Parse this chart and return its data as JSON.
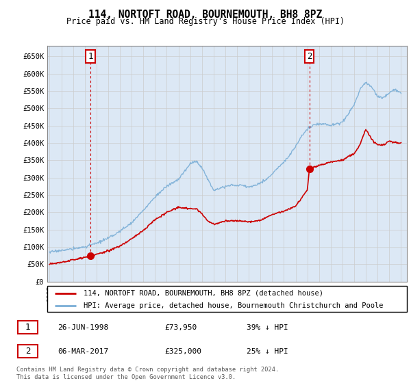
{
  "title": "114, NORTOFT ROAD, BOURNEMOUTH, BH8 8PZ",
  "subtitle": "Price paid vs. HM Land Registry's House Price Index (HPI)",
  "ylabel_ticks": [
    "£0",
    "£50K",
    "£100K",
    "£150K",
    "£200K",
    "£250K",
    "£300K",
    "£350K",
    "£400K",
    "£450K",
    "£500K",
    "£550K",
    "£600K",
    "£650K"
  ],
  "ytick_values": [
    0,
    50000,
    100000,
    150000,
    200000,
    250000,
    300000,
    350000,
    400000,
    450000,
    500000,
    550000,
    600000,
    650000
  ],
  "ylim": [
    0,
    680000
  ],
  "xlim_start": 1994.8,
  "xlim_end": 2025.5,
  "sale1_x": 1998.49,
  "sale1_y": 73950,
  "sale2_x": 2017.17,
  "sale2_y": 325000,
  "sale1_label": "1",
  "sale2_label": "2",
  "red_color": "#cc0000",
  "blue_color": "#7aaed6",
  "legend_line1": "114, NORTOFT ROAD, BOURNEMOUTH, BH8 8PZ (detached house)",
  "legend_line2": "HPI: Average price, detached house, Bournemouth Christchurch and Poole",
  "table_row1_num": "1",
  "table_row1_date": "26-JUN-1998",
  "table_row1_price": "£73,950",
  "table_row1_hpi": "39% ↓ HPI",
  "table_row2_num": "2",
  "table_row2_date": "06-MAR-2017",
  "table_row2_price": "£325,000",
  "table_row2_hpi": "25% ↓ HPI",
  "footer": "Contains HM Land Registry data © Crown copyright and database right 2024.\nThis data is licensed under the Open Government Licence v3.0.",
  "bg_color": "#ffffff",
  "grid_color": "#cccccc",
  "panel_bg": "#dce8f5"
}
